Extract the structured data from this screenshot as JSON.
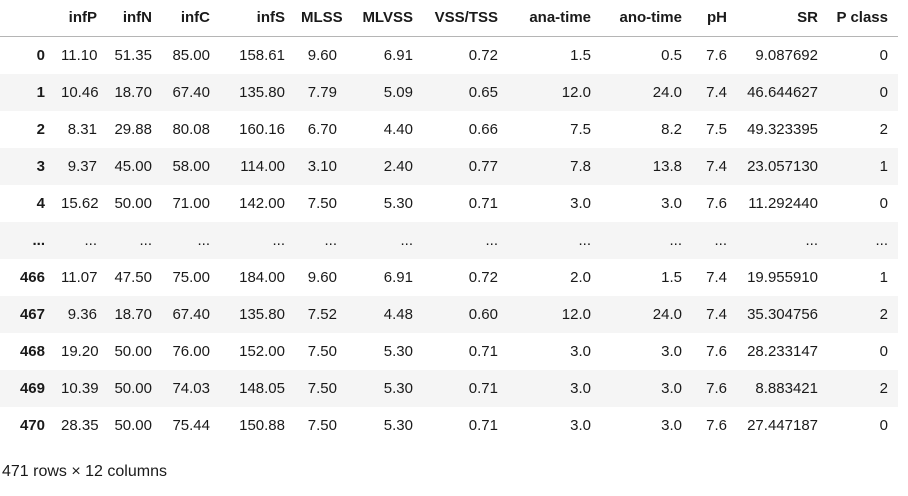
{
  "table": {
    "index_header": "",
    "columns": [
      "infP",
      "infN",
      "infC",
      "infS",
      "MLSS",
      "MLVSS",
      "VSS/TSS",
      "ana-time",
      "ano-time",
      "pH",
      "SR",
      "P class"
    ],
    "rows": [
      {
        "index": "0",
        "cells": [
          "11.10",
          "51.35",
          "85.00",
          "158.61",
          "9.60",
          "6.91",
          "0.72",
          "1.5",
          "0.5",
          "7.6",
          "9.087692",
          "0"
        ]
      },
      {
        "index": "1",
        "cells": [
          "10.46",
          "18.70",
          "67.40",
          "135.80",
          "7.79",
          "5.09",
          "0.65",
          "12.0",
          "24.0",
          "7.4",
          "46.644627",
          "0"
        ]
      },
      {
        "index": "2",
        "cells": [
          "8.31",
          "29.88",
          "80.08",
          "160.16",
          "6.70",
          "4.40",
          "0.66",
          "7.5",
          "8.2",
          "7.5",
          "49.323395",
          "2"
        ]
      },
      {
        "index": "3",
        "cells": [
          "9.37",
          "45.00",
          "58.00",
          "114.00",
          "3.10",
          "2.40",
          "0.77",
          "7.8",
          "13.8",
          "7.4",
          "23.057130",
          "1"
        ]
      },
      {
        "index": "4",
        "cells": [
          "15.62",
          "50.00",
          "71.00",
          "142.00",
          "7.50",
          "5.30",
          "0.71",
          "3.0",
          "3.0",
          "7.6",
          "11.292440",
          "0"
        ]
      },
      {
        "index": "...",
        "cells": [
          "...",
          "...",
          "...",
          "...",
          "...",
          "...",
          "...",
          "...",
          "...",
          "...",
          "...",
          "..."
        ]
      },
      {
        "index": "466",
        "cells": [
          "11.07",
          "47.50",
          "75.00",
          "184.00",
          "9.60",
          "6.91",
          "0.72",
          "2.0",
          "1.5",
          "7.4",
          "19.955910",
          "1"
        ]
      },
      {
        "index": "467",
        "cells": [
          "9.36",
          "18.70",
          "67.40",
          "135.80",
          "7.52",
          "4.48",
          "0.60",
          "12.0",
          "24.0",
          "7.4",
          "35.304756",
          "2"
        ]
      },
      {
        "index": "468",
        "cells": [
          "19.20",
          "50.00",
          "76.00",
          "152.00",
          "7.50",
          "5.30",
          "0.71",
          "3.0",
          "3.0",
          "7.6",
          "28.233147",
          "0"
        ]
      },
      {
        "index": "469",
        "cells": [
          "10.39",
          "50.00",
          "74.03",
          "148.05",
          "7.50",
          "5.30",
          "0.71",
          "3.0",
          "3.0",
          "7.6",
          "8.883421",
          "2"
        ]
      },
      {
        "index": "470",
        "cells": [
          "28.35",
          "50.00",
          "75.44",
          "150.88",
          "7.50",
          "5.30",
          "0.71",
          "3.0",
          "3.0",
          "7.6",
          "27.447187",
          "0"
        ]
      }
    ],
    "summary": "471 rows × 12 columns"
  },
  "colors": {
    "text": "#1a1a1a",
    "stripe": "#f5f5f5",
    "header_border": "#b5b5b5"
  }
}
